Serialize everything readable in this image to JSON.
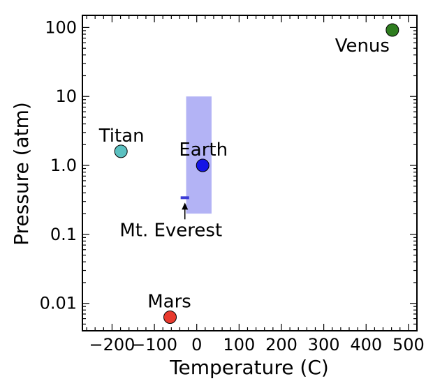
{
  "chart_data": {
    "type": "scatter",
    "xlabel": "Temperature (C)",
    "ylabel": "Pressure (atm)",
    "xlim": [
      -270,
      520
    ],
    "ylim": [
      0.004,
      150
    ],
    "yscale": "log",
    "grid": false,
    "x_ticks": [
      {
        "value": -200,
        "label": "−200"
      },
      {
        "value": -100,
        "label": "−100"
      },
      {
        "value": 0,
        "label": "0"
      },
      {
        "value": 100,
        "label": "100"
      },
      {
        "value": 200,
        "label": "200"
      },
      {
        "value": 300,
        "label": "300"
      },
      {
        "value": 400,
        "label": "400"
      },
      {
        "value": 500,
        "label": "500"
      }
    ],
    "y_ticks": [
      {
        "value": 0.01,
        "label": "0.01"
      },
      {
        "value": 0.1,
        "label": "0.1"
      },
      {
        "value": 1,
        "label": "1.0"
      },
      {
        "value": 10,
        "label": "10"
      },
      {
        "value": 100,
        "label": "100"
      }
    ],
    "points": [
      {
        "name": "Venus",
        "x": 462,
        "y": 92,
        "color": "#2e7d1f"
      },
      {
        "name": "Titan",
        "x": -179,
        "y": 1.6,
        "color": "#5bc0c0"
      },
      {
        "name": "Earth",
        "x": 14,
        "y": 1.0,
        "color": "#1414e6"
      },
      {
        "name": "Mars",
        "x": -63,
        "y": 0.0063,
        "color": "#e83a2e"
      }
    ],
    "region": {
      "x": [
        -25,
        35
      ],
      "y": [
        0.2,
        10
      ],
      "color": "#b3b3f5"
    },
    "marker": {
      "x": [
        -38,
        -18
      ],
      "y": 0.34,
      "color": "#3b3bd6"
    },
    "annotation": {
      "text": "Mt. Everest",
      "x": -28,
      "y": 0.34
    }
  }
}
